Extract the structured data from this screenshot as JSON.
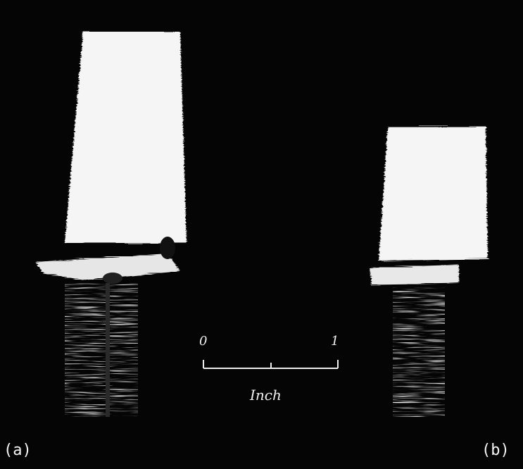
{
  "photo": {
    "background_color": "#050505",
    "specimen_color": "#f4f4f4",
    "scale_color": "#eeeeee"
  },
  "scale_bar": {
    "start_label": "0",
    "end_label": "1",
    "unit_label": "Inch"
  },
  "panels": {
    "left_label": "(a)",
    "right_label": "(b)"
  }
}
